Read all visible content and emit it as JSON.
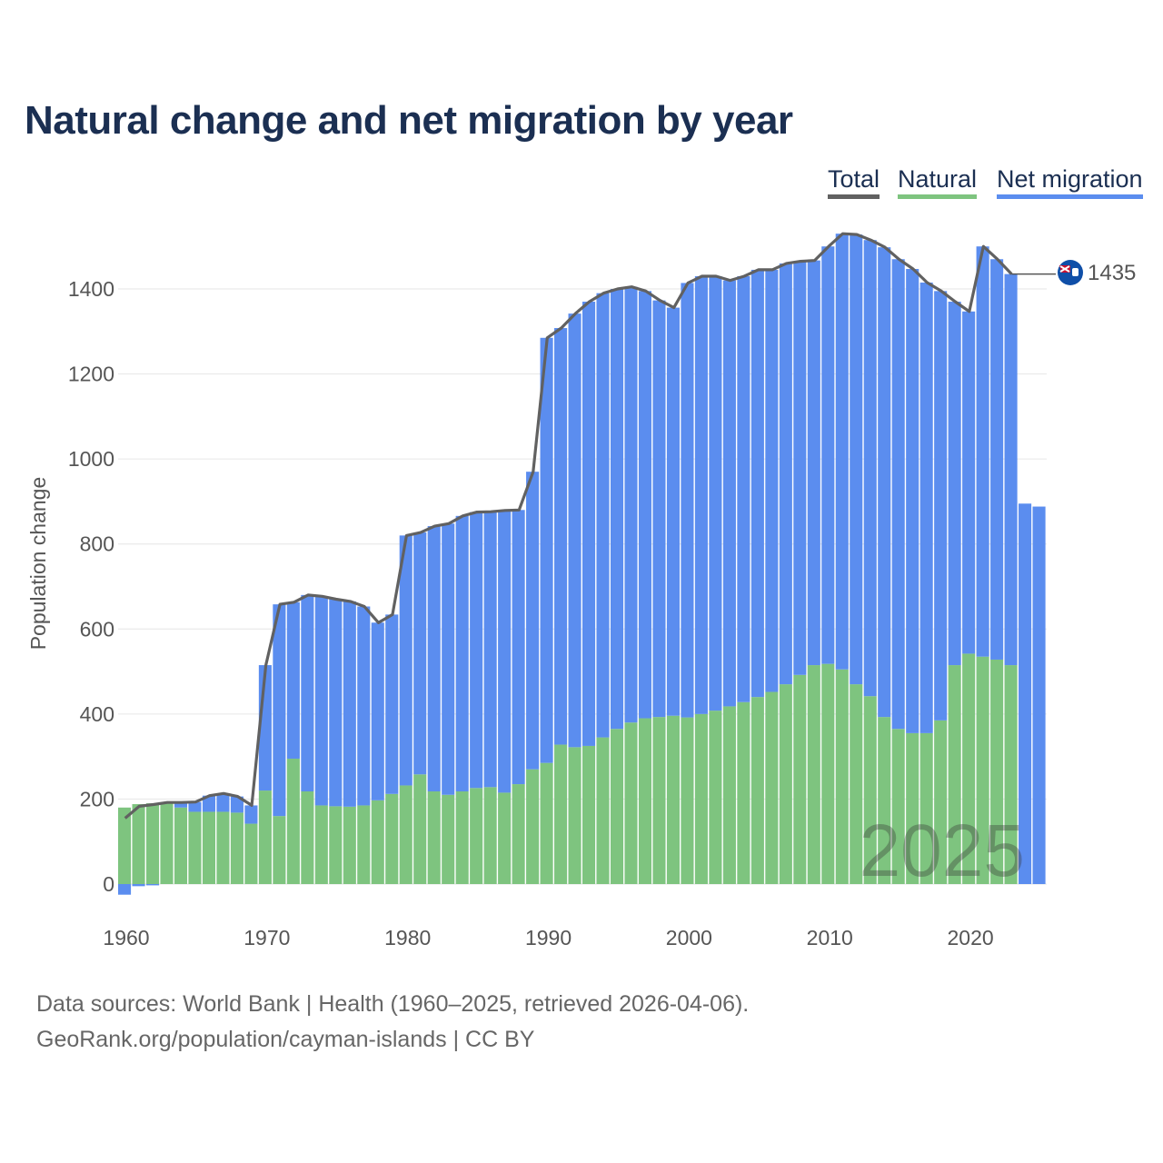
{
  "title": "Natural change and net migration by year",
  "legend": {
    "total": {
      "label": "Total",
      "color": "#616161"
    },
    "natural": {
      "label": "Natural",
      "color": "#7ec47f"
    },
    "migration": {
      "label": "Net migration",
      "color": "#5b8def"
    }
  },
  "watermark_year": "2025",
  "end_label": "1435",
  "end_icon": "cayman-islands-flag-icon",
  "source": {
    "line1": "Data sources: World Bank | Health (1960–2025, retrieved 2026-04-06).",
    "line2": "GeoRank.org/population/cayman-islands | CC BY"
  },
  "chart_data": {
    "type": "bar",
    "stacked": true,
    "title": "Natural change and net migration by year",
    "xlabel": "",
    "ylabel": "Population change",
    "ylim": [
      -30,
      1560
    ],
    "xlim": [
      1960,
      2025
    ],
    "y_ticks": [
      0,
      200,
      400,
      600,
      800,
      1000,
      1200,
      1400
    ],
    "x_ticks": [
      1960,
      1970,
      1980,
      1990,
      2000,
      2010,
      2020
    ],
    "grid": true,
    "legend_position": "top-right",
    "categories": [
      1960,
      1961,
      1962,
      1963,
      1964,
      1965,
      1966,
      1967,
      1968,
      1969,
      1970,
      1971,
      1972,
      1973,
      1974,
      1975,
      1976,
      1977,
      1978,
      1979,
      1980,
      1981,
      1982,
      1983,
      1984,
      1985,
      1986,
      1987,
      1988,
      1989,
      1990,
      1991,
      1992,
      1993,
      1994,
      1995,
      1996,
      1997,
      1998,
      1999,
      2000,
      2001,
      2002,
      2003,
      2004,
      2005,
      2006,
      2007,
      2008,
      2009,
      2010,
      2011,
      2012,
      2013,
      2014,
      2015,
      2016,
      2017,
      2018,
      2019,
      2020,
      2021,
      2022,
      2023,
      2024,
      2025
    ],
    "series": [
      {
        "name": "Natural",
        "values": [
          180,
          188,
          190,
          192,
          180,
          170,
          170,
          170,
          168,
          142,
          220,
          160,
          295,
          218,
          185,
          183,
          182,
          185,
          197,
          212,
          232,
          258,
          218,
          210,
          218,
          226,
          228,
          215,
          235,
          270,
          285,
          328,
          322,
          325,
          345,
          365,
          380,
          390,
          393,
          396,
          392,
          400,
          408,
          418,
          428,
          440,
          452,
          470,
          492,
          515,
          518,
          505,
          470,
          442,
          393,
          365,
          355,
          355,
          385,
          515,
          542,
          535,
          528,
          515,
          0,
          0
        ]
      },
      {
        "name": "Net migration",
        "values": [
          -25,
          -5,
          -3,
          0,
          12,
          23,
          38,
          43,
          38,
          43,
          295,
          498,
          368,
          462,
          492,
          487,
          483,
          468,
          418,
          422,
          588,
          569,
          624,
          638,
          648,
          649,
          648,
          664,
          645,
          700,
          1000,
          980,
          1020,
          1045,
          1045,
          1035,
          1025,
          1005,
          980,
          960,
          1022,
          1030,
          1022,
          1002,
          1002,
          1005,
          993,
          990,
          973,
          952,
          982,
          1025,
          1058,
          1073,
          1105,
          1105,
          1092,
          1060,
          1010,
          855,
          805,
          965,
          942,
          920,
          895,
          888
        ]
      },
      {
        "name": "Total",
        "values": [
          155,
          183,
          187,
          192,
          192,
          193,
          208,
          213,
          206,
          185,
          515,
          658,
          663,
          680,
          677,
          670,
          665,
          653,
          615,
          634,
          820,
          827,
          842,
          848,
          866,
          875,
          876,
          879,
          880,
          970,
          1285,
          1308,
          1342,
          1370,
          1390,
          1400,
          1405,
          1395,
          1373,
          1356,
          1414,
          1430,
          1430,
          1420,
          1430,
          1445,
          1445,
          1460,
          1465,
          1467,
          1500,
          1530,
          1528,
          1515,
          1498,
          1470,
          1447,
          1415,
          1395,
          1370,
          1347,
          1500,
          1470,
          1435,
          null,
          null
        ]
      }
    ]
  }
}
